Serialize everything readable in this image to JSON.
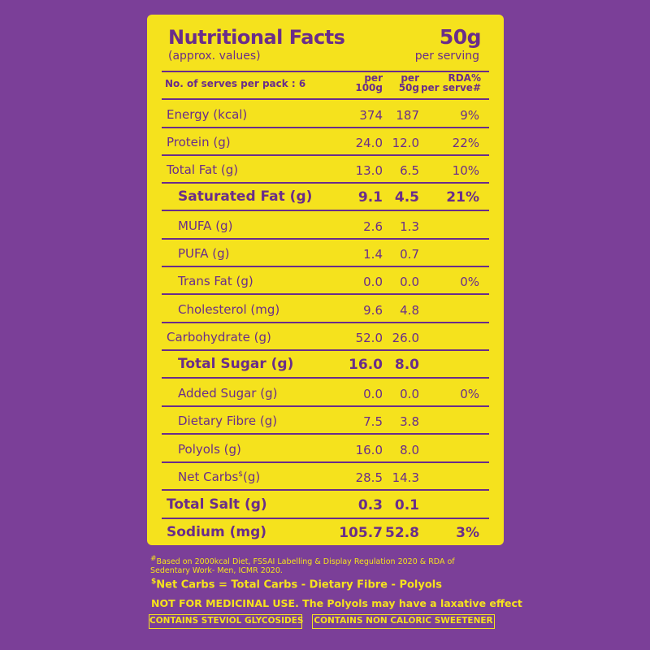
{
  "header": {
    "title": "Nutritional Facts",
    "subtitle": "(approx. values)",
    "serving_size": "50g",
    "serving_label": "per serving"
  },
  "columns": {
    "label": "No. of serves per pack : 6",
    "col1": [
      "per",
      "100g"
    ],
    "col2": [
      "per",
      "50g"
    ],
    "col3": [
      "RDA%",
      "per serve#"
    ]
  },
  "rows": [
    {
      "name": "Energy (kcal)",
      "per100": "374",
      "per50": "187",
      "rda": "9%"
    },
    {
      "name": "Protein (g)",
      "per100": "24.0",
      "per50": "12.0",
      "rda": "22%"
    },
    {
      "name": "Total Fat (g)",
      "per100": "13.0",
      "per50": "6.5",
      "rda": "10%"
    },
    {
      "name": "Saturated Fat (g)",
      "per100": "9.1",
      "per50": "4.5",
      "rda": "21%"
    },
    {
      "name": "MUFA (g)",
      "per100": "2.6",
      "per50": "1.3",
      "rda": ""
    },
    {
      "name": "PUFA (g)",
      "per100": "1.4",
      "per50": "0.7",
      "rda": ""
    },
    {
      "name": "Trans Fat (g)",
      "per100": "0.0",
      "per50": "0.0",
      "rda": "0%"
    },
    {
      "name": "Cholesterol (mg)",
      "per100": "9.6",
      "per50": "4.8",
      "rda": ""
    },
    {
      "name": "Carbohydrate (g)",
      "per100": "52.0",
      "per50": "26.0",
      "rda": ""
    },
    {
      "name": "Total Sugar (g)",
      "per100": "16.0",
      "per50": "8.0",
      "rda": ""
    },
    {
      "name": "Added Sugar (g)",
      "per100": "0.0",
      "per50": "0.0",
      "rda": "0%"
    },
    {
      "name": "Dietary Fibre (g)",
      "per100": "7.5",
      "per50": "3.8",
      "rda": ""
    },
    {
      "name": "Polyols (g)",
      "per100": "16.0",
      "per50": "8.0",
      "rda": ""
    },
    {
      "name": "Net Carbs",
      "name_sup": "$",
      "name_suffix": "(g)",
      "per100": "28.5",
      "per50": "14.3",
      "rda": ""
    },
    {
      "name": "Total Salt (g)",
      "per100": "0.3",
      "per50": "0.1",
      "rda": ""
    },
    {
      "name": "Sodium (mg)",
      "per100": "105.7",
      "per50": "52.8",
      "rda": "3%"
    }
  ],
  "footnotes": {
    "rda_note_mark": "#",
    "rda_note": "Based on 2000kcal Diet, FSSAI Labelling & Display Regulation 2020 & RDA of Sedentary Work- Men, ICMR 2020.",
    "net_carbs_mark": "$",
    "net_carbs_note": "Net Carbs = Total Carbs - Dietary Fibre - Polyols",
    "warning": "NOT FOR MEDICINAL USE. The Polyols may have a laxative effect"
  },
  "badges": [
    "CONTAINS STEVIOL GLYCOSIDES",
    "CONTAINS NON CALORIC SWEETENER"
  ],
  "colors": {
    "background": "#7b3f98",
    "panel": "#f5e21d",
    "text": "#6a2d8a"
  }
}
